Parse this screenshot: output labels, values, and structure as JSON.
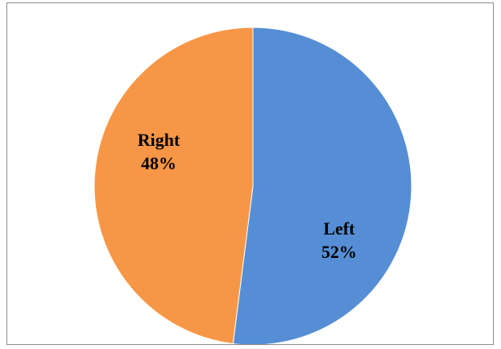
{
  "chart_data": {
    "type": "pie",
    "title": "",
    "legend": "none",
    "slices": [
      {
        "category": "Left",
        "value": 52,
        "percent_label": "52%",
        "color": "#558ED5"
      },
      {
        "category": "Right",
        "value": 48,
        "percent_label": "48%",
        "color": "#F79646"
      }
    ]
  }
}
